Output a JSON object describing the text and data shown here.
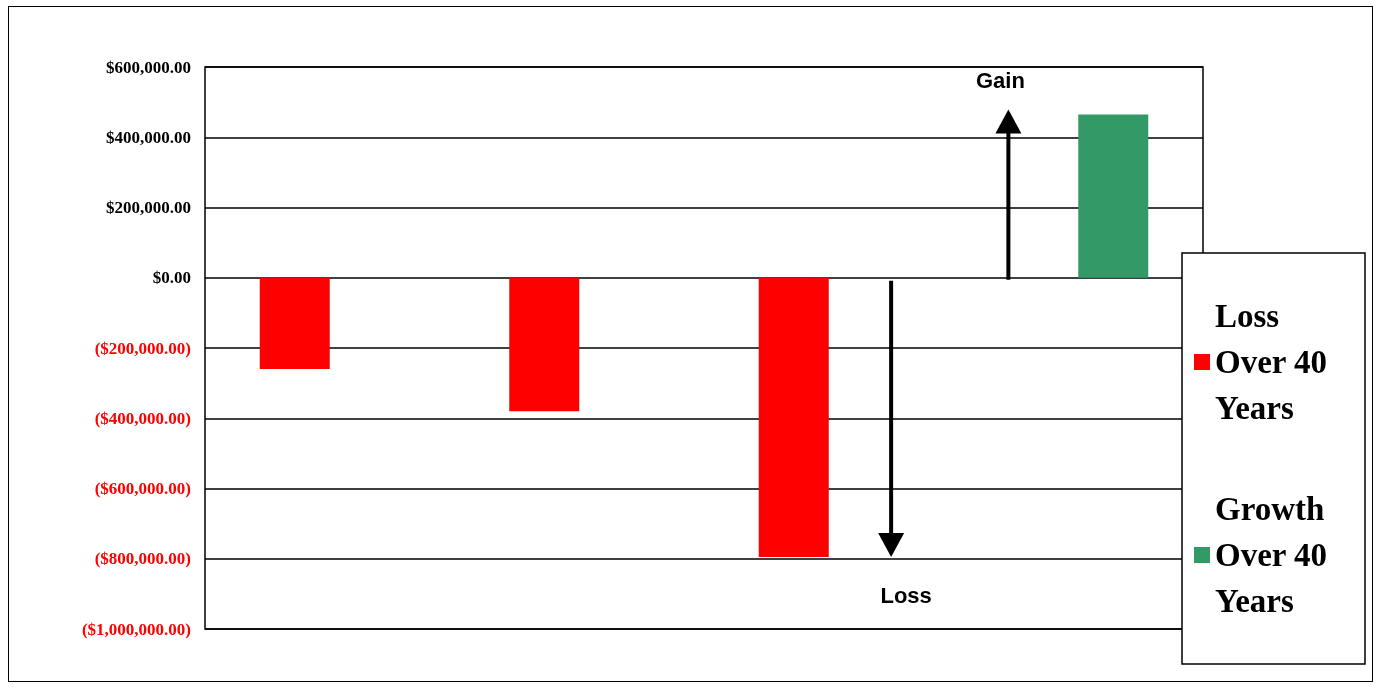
{
  "chart_data": {
    "type": "bar",
    "categories": [
      null,
      null,
      null,
      null
    ],
    "series": [
      {
        "name": "Loss Over 40 Years",
        "color": "#ff0000",
        "values": [
          -260000,
          -380000,
          -795000,
          null
        ]
      },
      {
        "name": "Growth Over 40 Years",
        "color": "#339966",
        "values": [
          null,
          null,
          null,
          465000
        ]
      }
    ],
    "ylim": [
      -1000000,
      600000
    ],
    "yticks": [
      {
        "value": -1000000,
        "label": "($1,000,000.00)"
      },
      {
        "value": -800000,
        "label": "($800,000.00)"
      },
      {
        "value": -600000,
        "label": "($600,000.00)"
      },
      {
        "value": -400000,
        "label": "($400,000.00)"
      },
      {
        "value": -200000,
        "label": "($200,000.00)"
      },
      {
        "value": 0,
        "label": "$0.00"
      },
      {
        "value": 200000,
        "label": "$200,000.00"
      },
      {
        "value": 400000,
        "label": "$400,000.00"
      },
      {
        "value": 600000,
        "label": "$600,000.00"
      }
    ],
    "annotations": [
      "Gain",
      "Loss"
    ],
    "grid": "y",
    "legend": "right"
  }
}
